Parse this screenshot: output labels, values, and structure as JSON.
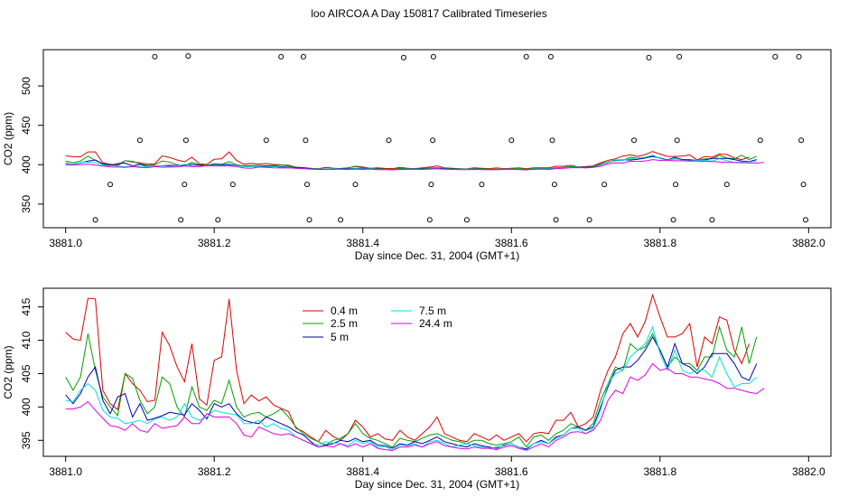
{
  "title": "loo AIRCOA A  Day 150817  Calibrated Timeseries",
  "chart_data": [
    {
      "type": "scatter",
      "panel": "top",
      "xlabel": "Day since Dec. 31, 2004 (GMT+1)",
      "ylabel": "CO2 (ppm)",
      "xlim": [
        3880.97,
        3882.03
      ],
      "ylim": [
        320,
        546
      ],
      "xticks": [
        "3881.0",
        "3881.2",
        "3881.4",
        "3881.6",
        "3881.8",
        "3882.0"
      ],
      "yticks": [
        "350",
        "400",
        "450",
        "500"
      ],
      "grid": false,
      "line_series": [
        {
          "name": "0.4 m",
          "color": "#dd0000"
        },
        {
          "name": "2.5 m",
          "color": "#00a000"
        },
        {
          "name": "5 m",
          "color": "#0000b0"
        },
        {
          "name": "7.5 m",
          "color": "#00e0e0"
        },
        {
          "name": "24.4 m",
          "color": "#e000e0"
        }
      ],
      "points": [
        {
          "x": 3881.04,
          "y": 330
        },
        {
          "x": 3881.06,
          "y": 375
        },
        {
          "x": 3881.1,
          "y": 431
        },
        {
          "x": 3881.12,
          "y": 537
        },
        {
          "x": 3881.155,
          "y": 330
        },
        {
          "x": 3881.16,
          "y": 375
        },
        {
          "x": 3881.162,
          "y": 431
        },
        {
          "x": 3881.165,
          "y": 538
        },
        {
          "x": 3881.205,
          "y": 330
        },
        {
          "x": 3881.225,
          "y": 375
        },
        {
          "x": 3881.27,
          "y": 431
        },
        {
          "x": 3881.29,
          "y": 537
        },
        {
          "x": 3881.32,
          "y": 537
        },
        {
          "x": 3881.323,
          "y": 431
        },
        {
          "x": 3881.325,
          "y": 375
        },
        {
          "x": 3881.328,
          "y": 330
        },
        {
          "x": 3881.37,
          "y": 330
        },
        {
          "x": 3881.39,
          "y": 375
        },
        {
          "x": 3881.435,
          "y": 431
        },
        {
          "x": 3881.455,
          "y": 536
        },
        {
          "x": 3881.49,
          "y": 330
        },
        {
          "x": 3881.492,
          "y": 375
        },
        {
          "x": 3881.494,
          "y": 431
        },
        {
          "x": 3881.495,
          "y": 537
        },
        {
          "x": 3881.54,
          "y": 330
        },
        {
          "x": 3881.56,
          "y": 375
        },
        {
          "x": 3881.6,
          "y": 431
        },
        {
          "x": 3881.62,
          "y": 537
        },
        {
          "x": 3881.653,
          "y": 537
        },
        {
          "x": 3881.655,
          "y": 431
        },
        {
          "x": 3881.658,
          "y": 375
        },
        {
          "x": 3881.66,
          "y": 330
        },
        {
          "x": 3881.705,
          "y": 330
        },
        {
          "x": 3881.725,
          "y": 375
        },
        {
          "x": 3881.765,
          "y": 431
        },
        {
          "x": 3881.785,
          "y": 536
        },
        {
          "x": 3881.818,
          "y": 330
        },
        {
          "x": 3881.821,
          "y": 375
        },
        {
          "x": 3881.823,
          "y": 431
        },
        {
          "x": 3881.826,
          "y": 537
        },
        {
          "x": 3881.87,
          "y": 330
        },
        {
          "x": 3881.89,
          "y": 375
        },
        {
          "x": 3881.935,
          "y": 431
        },
        {
          "x": 3881.955,
          "y": 537
        },
        {
          "x": 3881.987,
          "y": 537
        },
        {
          "x": 3881.99,
          "y": 431
        },
        {
          "x": 3881.993,
          "y": 375
        },
        {
          "x": 3881.996,
          "y": 330
        }
      ]
    },
    {
      "type": "line",
      "panel": "bottom",
      "xlabel": "Day since Dec. 31, 2004 (GMT+1)",
      "ylabel": "CO2 (ppm)",
      "xlim": [
        3880.97,
        3882.03
      ],
      "ylim": [
        392.6,
        417.8
      ],
      "xticks": [
        "3881.0",
        "3881.2",
        "3881.4",
        "3881.6",
        "3881.8",
        "3882.0"
      ],
      "yticks": [
        "395",
        "400",
        "405",
        "410",
        "415"
      ],
      "grid": false,
      "legend_position": "top-center",
      "x_start": 3881.0,
      "x_step": 0.01,
      "series": [
        {
          "name": "0.4 m",
          "color": "#dd0000",
          "values": [
            411.2,
            410.2,
            410.0,
            416.3,
            416.2,
            402.5,
            400.5,
            399.6,
            405.0,
            403.5,
            402.5,
            400.8,
            401.0,
            411.2,
            409.2,
            406.0,
            403.8,
            409.5,
            401.2,
            400.3,
            407.0,
            407.5,
            416.2,
            405.5,
            400.5,
            401.8,
            400.9,
            401.5,
            400.3,
            399.8,
            399.3,
            396.8,
            396.3,
            395.5,
            394.8,
            396.5,
            395.6,
            395.0,
            396.0,
            398.0,
            397.0,
            395.5,
            396.0,
            395.2,
            395.0,
            396.5,
            395.5,
            395.0,
            396.0,
            397.0,
            398.5,
            396.0,
            395.5,
            395.0,
            394.8,
            396.0,
            395.5,
            395.0,
            395.8,
            395.0,
            395.5,
            396.0,
            394.8,
            396.0,
            396.2,
            396.0,
            398.0,
            398.0,
            399.2,
            397.0,
            397.5,
            398.5,
            402.5,
            405.5,
            407.5,
            411.0,
            412.5,
            410.5,
            412.8,
            416.8,
            413.5,
            410.5,
            410.5,
            411.0,
            412.5,
            406.0,
            410.5,
            409.5,
            413.5,
            413.0,
            408.5,
            406.5,
            409.5
          ]
        },
        {
          "name": "2.5 m",
          "color": "#00a000",
          "values": [
            404.5,
            402.5,
            404.5,
            411.0,
            405.5,
            401.5,
            400.0,
            398.7,
            405.0,
            404.3,
            401.0,
            399.0,
            400.0,
            404.5,
            403.5,
            400.0,
            398.5,
            403.0,
            400.0,
            399.5,
            401.0,
            400.5,
            404.0,
            400.0,
            398.5,
            399.0,
            399.2,
            398.5,
            399.0,
            399.7,
            398.5,
            397.0,
            396.0,
            395.3,
            394.8,
            394.3,
            395.0,
            395.3,
            396.0,
            397.5,
            396.0,
            395.3,
            395.0,
            394.5,
            394.0,
            395.3,
            395.0,
            394.8,
            395.3,
            395.8,
            396.0,
            395.5,
            395.0,
            394.8,
            394.5,
            395.0,
            395.0,
            394.5,
            394.3,
            394.5,
            394.8,
            395.5,
            394.0,
            395.5,
            395.8,
            395.0,
            396.0,
            396.5,
            397.5,
            397.0,
            396.5,
            397.5,
            401.0,
            403.5,
            406.0,
            405.5,
            409.5,
            408.5,
            409.0,
            411.0,
            408.5,
            406.0,
            407.5,
            406.5,
            406.5,
            405.5,
            407.5,
            407.5,
            412.0,
            408.5,
            407.5,
            412.0,
            406.5,
            410.5
          ]
        },
        {
          "name": "5 m",
          "color": "#0000b0",
          "values": [
            401.8,
            400.5,
            402.0,
            404.5,
            406.0,
            401.0,
            399.0,
            401.5,
            402.0,
            398.5,
            400.5,
            398.0,
            398.3,
            398.7,
            399.2,
            399.0,
            398.8,
            400.5,
            399.5,
            398.2,
            400.5,
            400.0,
            400.5,
            399.0,
            398.0,
            397.7,
            397.5,
            398.5,
            398.0,
            397.5,
            397.0,
            396.3,
            395.8,
            394.8,
            394.0,
            394.3,
            394.5,
            395.0,
            394.8,
            395.3,
            394.8,
            395.0,
            394.3,
            394.2,
            393.8,
            394.5,
            394.3,
            394.8,
            394.5,
            395.0,
            395.5,
            394.8,
            394.5,
            394.2,
            394.0,
            394.5,
            394.2,
            394.0,
            393.8,
            394.3,
            394.5,
            394.0,
            393.7,
            394.5,
            395.0,
            394.5,
            395.5,
            395.8,
            396.8,
            397.0,
            396.5,
            397.0,
            400.0,
            403.0,
            405.5,
            406.0,
            406.0,
            407.0,
            408.5,
            410.5,
            408.5,
            406.0,
            409.5,
            406.5,
            406.0,
            405.0,
            406.0,
            408.0,
            408.0,
            408.0,
            406.5,
            404.5,
            404.0,
            406.5
          ]
        },
        {
          "name": "7.5 m",
          "color": "#00e0e0",
          "values": [
            401.0,
            400.8,
            402.5,
            403.5,
            402.5,
            399.5,
            398.5,
            398.3,
            397.5,
            397.7,
            398.0,
            397.5,
            398.2,
            398.5,
            398.0,
            398.5,
            400.5,
            398.5,
            398.0,
            398.5,
            399.5,
            399.2,
            399.0,
            398.8,
            397.5,
            397.5,
            398.0,
            397.0,
            397.5,
            396.8,
            396.5,
            395.5,
            395.0,
            394.5,
            394.3,
            394.8,
            394.6,
            394.5,
            394.2,
            395.0,
            394.5,
            394.8,
            394.0,
            394.1,
            393.5,
            394.3,
            394.2,
            394.5,
            394.0,
            394.8,
            395.0,
            394.5,
            394.0,
            394.3,
            394.5,
            394.2,
            394.0,
            393.8,
            394.0,
            394.2,
            394.5,
            394.0,
            393.5,
            394.5,
            394.8,
            394.5,
            395.3,
            395.8,
            396.8,
            396.8,
            396.0,
            396.8,
            399.5,
            403.5,
            405.0,
            405.5,
            407.5,
            408.5,
            409.5,
            412.0,
            408.0,
            405.5,
            408.5,
            405.5,
            405.0,
            405.5,
            405.5,
            404.5,
            407.5,
            405.0,
            403.0,
            403.5,
            403.5,
            404.5
          ]
        },
        {
          "name": "24.4 m",
          "color": "#e000e0",
          "values": [
            399.7,
            399.7,
            400.0,
            400.8,
            399.5,
            398.3,
            397.2,
            397.0,
            396.5,
            397.5,
            396.5,
            396.2,
            397.5,
            396.8,
            397.0,
            397.2,
            398.5,
            397.5,
            397.5,
            399.0,
            398.5,
            398.5,
            398.5,
            397.5,
            395.8,
            395.5,
            397.0,
            396.5,
            396.0,
            395.8,
            396.0,
            395.5,
            395.0,
            394.5,
            394.0,
            394.2,
            394.0,
            394.5,
            394.0,
            394.5,
            394.0,
            394.5,
            393.8,
            393.6,
            393.5,
            394.0,
            394.0,
            394.3,
            394.0,
            394.5,
            394.8,
            394.2,
            394.0,
            393.8,
            393.7,
            394.0,
            393.8,
            393.8,
            393.6,
            394.0,
            394.2,
            393.8,
            393.5,
            394.0,
            394.5,
            394.0,
            395.0,
            395.5,
            396.2,
            396.3,
            396.0,
            396.5,
            398.0,
            401.0,
            402.5,
            402.0,
            404.5,
            404.0,
            404.8,
            406.5,
            405.5,
            405.8,
            405.0,
            405.0,
            404.5,
            404.5,
            404.2,
            404.0,
            403.5,
            402.8,
            402.8,
            402.5,
            402.2,
            402.0,
            402.8
          ]
        }
      ]
    }
  ]
}
